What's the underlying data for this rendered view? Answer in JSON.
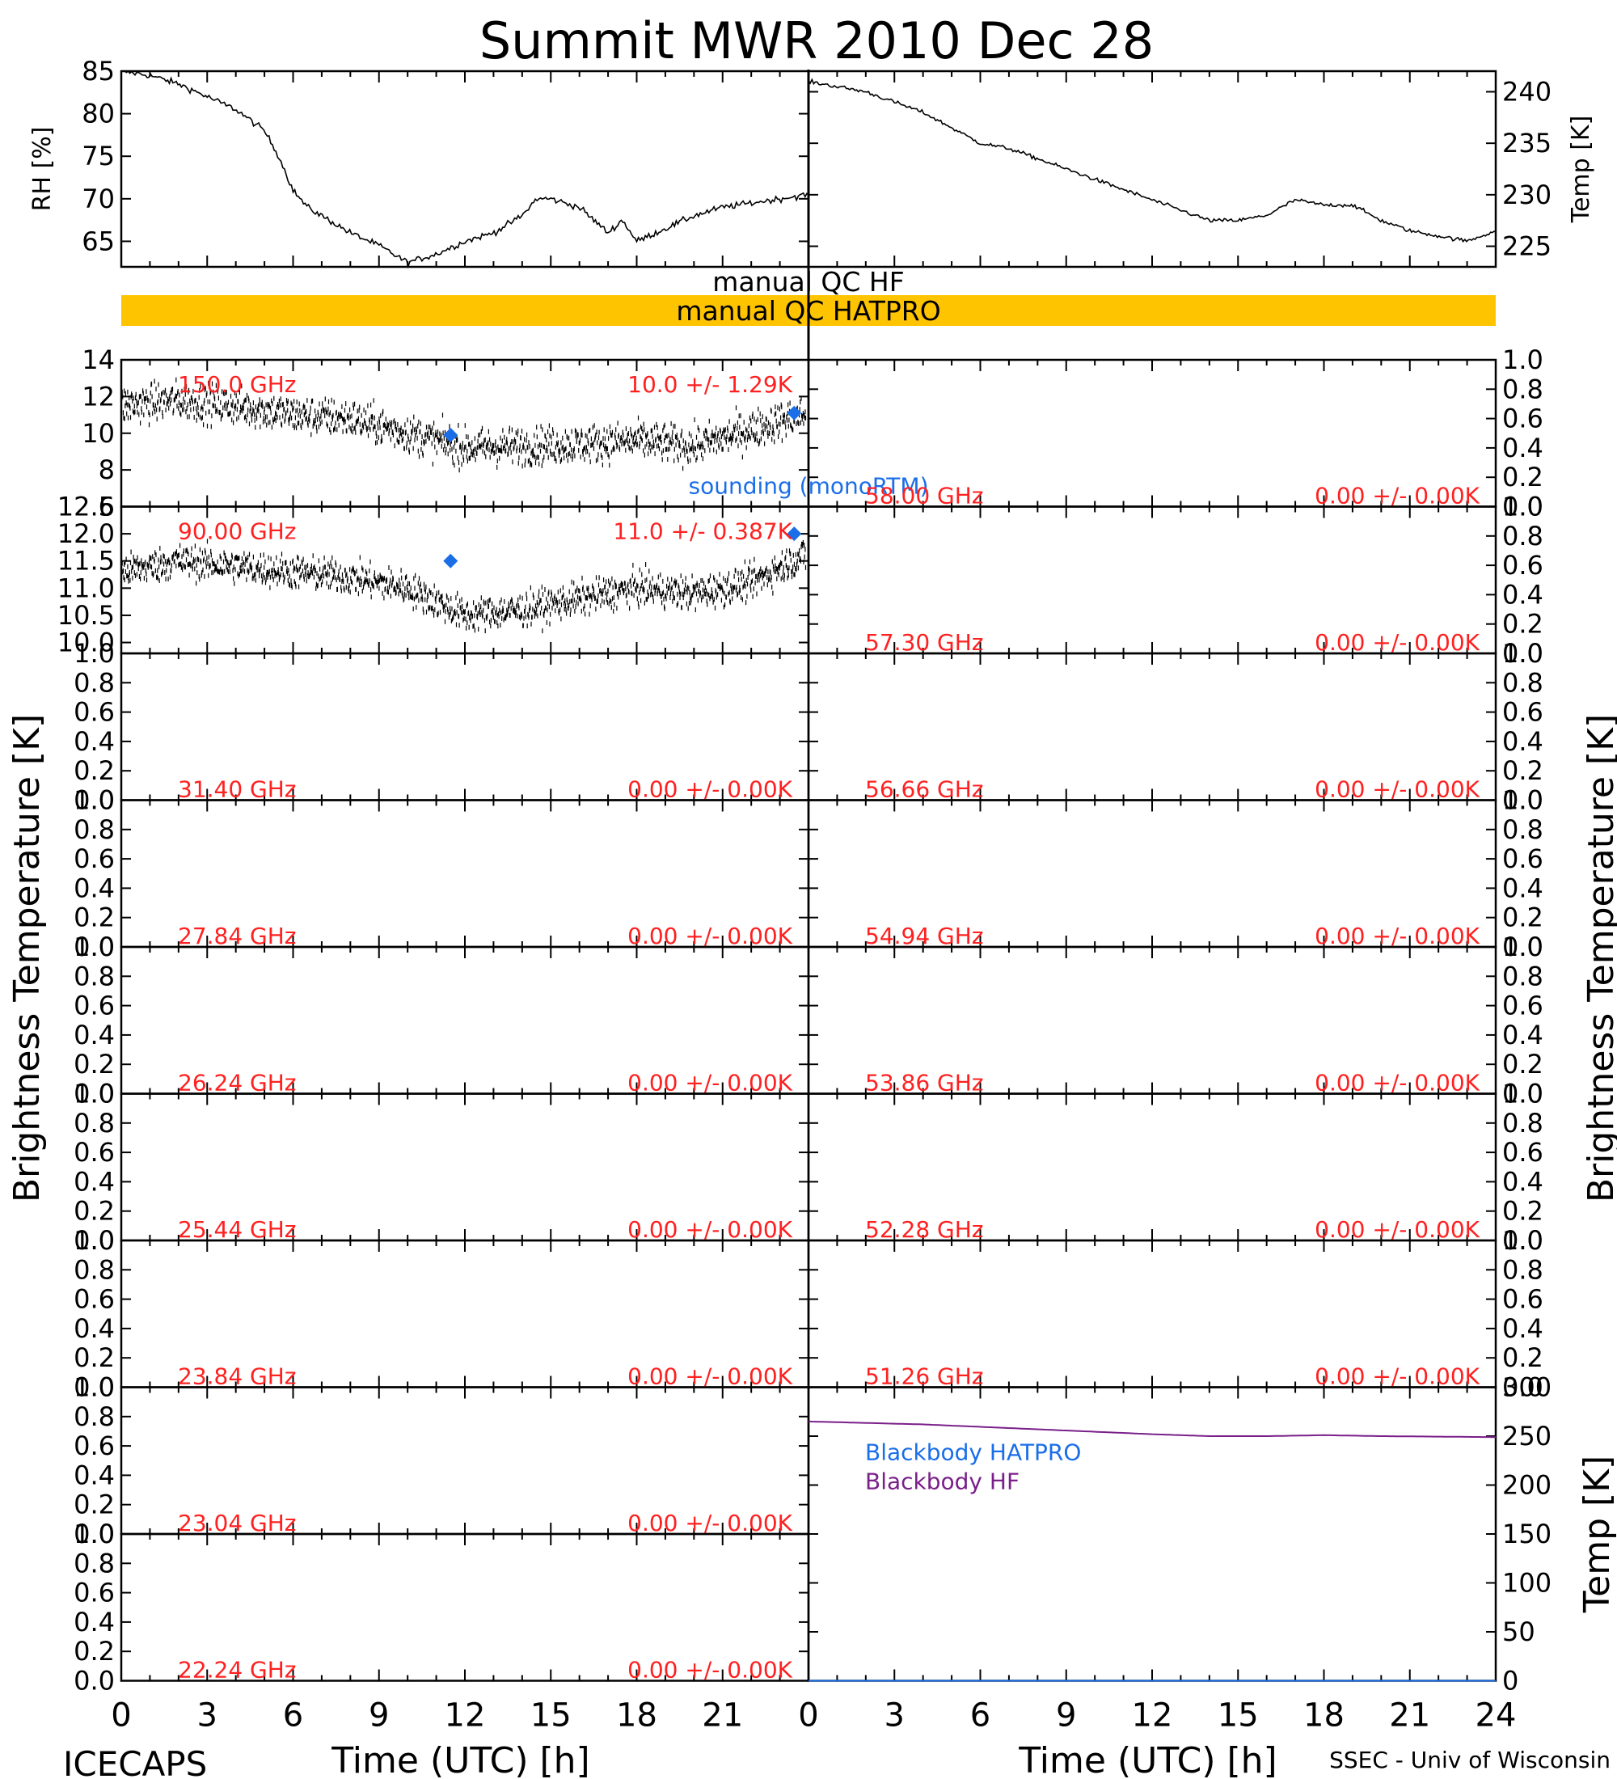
{
  "title": "Summit MWR 2010 Dec 28",
  "footer": {
    "left": "ICECAPS",
    "right": "SSEC - Univ of Wisconsin"
  },
  "x_axis": {
    "label": "Time (UTC) [h]",
    "range": [
      0,
      24
    ],
    "ticks_left": [
      "0",
      "3",
      "6",
      "9",
      "12",
      "15",
      "18",
      "21"
    ],
    "ticks_right": [
      "0",
      "3",
      "6",
      "9",
      "12",
      "15",
      "18",
      "21",
      "24"
    ]
  },
  "side_labels": {
    "left": "Brightness Temperature [K]",
    "right": "Brightness Temperature [K]"
  },
  "qc": {
    "hf": "manual QC HF",
    "hatpro": "manual QC HATPRO",
    "hatpro_color": "#ffc400"
  },
  "colors": {
    "annotation": "#ff2020",
    "sounding": "#1a6ee8",
    "blackbody_hf": "#7a1f8a",
    "data": "#000000"
  },
  "chart_data": [
    {
      "type": "line",
      "panel": "surface-rh",
      "ylabel": "RH [%]",
      "ylim": [
        62,
        85
      ],
      "yticks": [
        "65",
        "70",
        "75",
        "80",
        "85"
      ],
      "x": [
        0,
        1,
        2,
        3,
        4,
        5,
        5.5,
        6,
        6.5,
        7,
        8,
        9,
        9.5,
        10,
        11,
        12,
        13,
        14,
        14.5,
        15,
        16,
        17,
        17.5,
        18,
        19,
        20,
        21,
        22,
        23,
        24
      ],
      "series": [
        {
          "values": [
            85,
            84.5,
            83.5,
            82,
            80.5,
            78,
            75,
            71,
            69,
            68,
            66,
            64.5,
            63.5,
            62.5,
            63.5,
            65,
            66,
            68,
            70,
            70,
            69,
            66,
            67.5,
            65,
            66.5,
            68,
            69,
            69.5,
            70,
            70.5
          ]
        }
      ]
    },
    {
      "type": "line",
      "panel": "surface-temp",
      "ylabel": "Temp [K]",
      "ylim": [
        223,
        242
      ],
      "yticks": [
        "225",
        "230",
        "235",
        "240"
      ],
      "x": [
        0,
        1,
        2,
        3,
        4,
        5,
        6,
        7,
        8,
        9,
        10,
        11,
        12,
        13,
        14,
        15,
        16,
        17,
        18,
        19,
        20,
        21,
        22,
        23,
        24
      ],
      "series": [
        {
          "values": [
            241,
            240.5,
            240,
            239,
            238,
            236.5,
            235,
            234.5,
            233.5,
            232.5,
            231.5,
            230.5,
            229.5,
            228.5,
            227.5,
            227.5,
            228,
            229.5,
            229,
            229,
            227.5,
            226.5,
            226,
            225.5,
            226.5
          ]
        }
      ]
    },
    {
      "type": "scatter",
      "panel": "tb-150",
      "side": "left",
      "row": 0,
      "ylim": [
        6,
        14
      ],
      "yticks": [
        "6",
        "8",
        "10",
        "12",
        "14"
      ],
      "freq_label": "150.0 GHz",
      "stat_label": "10.0 +/-  1.29K",
      "x": [
        0,
        2,
        4,
        6,
        8,
        10,
        12,
        14,
        16,
        18,
        20,
        22,
        23.8
      ],
      "values": [
        11.5,
        11.8,
        11.5,
        11.0,
        10.8,
        10.0,
        9.2,
        9.3,
        9.4,
        9.6,
        9.3,
        10.2,
        11.0
      ],
      "noise": 1.29,
      "sounding": {
        "x": [
          11.5,
          23.5
        ],
        "values": [
          9.9,
          11.1
        ]
      },
      "sounding_label": "sounding (monoRTM)"
    },
    {
      "type": "scatter",
      "panel": "tb-90",
      "side": "left",
      "row": 1,
      "ylim": [
        9.8,
        12.5
      ],
      "yticks": [
        "10.0",
        "10.5",
        "11.0",
        "11.5",
        "12.0",
        "12.5"
      ],
      "freq_label": "90.00 GHz",
      "stat_label": "11.0 +/- 0.387K",
      "x": [
        0,
        2,
        4,
        6,
        8,
        10,
        12,
        14,
        16,
        18,
        20,
        22,
        23.8
      ],
      "values": [
        11.3,
        11.5,
        11.4,
        11.3,
        11.2,
        11.0,
        10.5,
        10.6,
        10.8,
        11.0,
        10.9,
        11.1,
        11.6
      ],
      "noise": 0.387,
      "sounding": {
        "x": [
          11.5,
          23.5
        ],
        "values": [
          11.5,
          12.0
        ]
      }
    },
    {
      "type": "scatter",
      "panel": "tb-31.40",
      "side": "left",
      "row": 2,
      "ylim": [
        0,
        1
      ],
      "yticks": [
        "0.0",
        "0.2",
        "0.4",
        "0.6",
        "0.8",
        "1.0"
      ],
      "freq_label": "31.40 GHz",
      "stat_label": "0.00 +/-  0.00K"
    },
    {
      "type": "scatter",
      "panel": "tb-27.84",
      "side": "left",
      "row": 3,
      "ylim": [
        0,
        1
      ],
      "yticks": [
        "0.0",
        "0.2",
        "0.4",
        "0.6",
        "0.8",
        "1.0"
      ],
      "freq_label": "27.84 GHz",
      "stat_label": "0.00 +/-  0.00K"
    },
    {
      "type": "scatter",
      "panel": "tb-26.24",
      "side": "left",
      "row": 4,
      "ylim": [
        0,
        1
      ],
      "yticks": [
        "0.0",
        "0.2",
        "0.4",
        "0.6",
        "0.8",
        "1.0"
      ],
      "freq_label": "26.24 GHz",
      "stat_label": "0.00 +/-  0.00K"
    },
    {
      "type": "scatter",
      "panel": "tb-25.44",
      "side": "left",
      "row": 5,
      "ylim": [
        0,
        1
      ],
      "yticks": [
        "0.0",
        "0.2",
        "0.4",
        "0.6",
        "0.8",
        "1.0"
      ],
      "freq_label": "25.44 GHz",
      "stat_label": "0.00 +/-  0.00K"
    },
    {
      "type": "scatter",
      "panel": "tb-23.84",
      "side": "left",
      "row": 6,
      "ylim": [
        0,
        1
      ],
      "yticks": [
        "0.0",
        "0.2",
        "0.4",
        "0.6",
        "0.8",
        "1.0"
      ],
      "freq_label": "23.84 GHz",
      "stat_label": "0.00 +/-  0.00K"
    },
    {
      "type": "scatter",
      "panel": "tb-23.04",
      "side": "left",
      "row": 7,
      "ylim": [
        0,
        1
      ],
      "yticks": [
        "0.0",
        "0.2",
        "0.4",
        "0.6",
        "0.8",
        "1.0"
      ],
      "freq_label": "23.04 GHz",
      "stat_label": "0.00 +/-  0.00K"
    },
    {
      "type": "scatter",
      "panel": "tb-22.24",
      "side": "left",
      "row": 8,
      "ylim": [
        0,
        1
      ],
      "yticks": [
        "0.0",
        "0.2",
        "0.4",
        "0.6",
        "0.8",
        "1.0"
      ],
      "freq_label": "22.24 GHz",
      "stat_label": "0.00 +/-  0.00K"
    },
    {
      "type": "scatter",
      "panel": "tb-58.00",
      "side": "right",
      "row": 0,
      "ylim": [
        0,
        1
      ],
      "yticks": [
        "0.0",
        "0.2",
        "0.4",
        "0.6",
        "0.8",
        "1.0"
      ],
      "freq_label": "58.00 GHz",
      "stat_label": "0.00 +/-  0.00K"
    },
    {
      "type": "scatter",
      "panel": "tb-57.30",
      "side": "right",
      "row": 1,
      "ylim": [
        0,
        1
      ],
      "yticks": [
        "0.0",
        "0.2",
        "0.4",
        "0.6",
        "0.8",
        "1.0"
      ],
      "freq_label": "57.30 GHz",
      "stat_label": "0.00 +/-  0.00K"
    },
    {
      "type": "scatter",
      "panel": "tb-56.66",
      "side": "right",
      "row": 2,
      "ylim": [
        0,
        1
      ],
      "yticks": [
        "0.0",
        "0.2",
        "0.4",
        "0.6",
        "0.8",
        "1.0"
      ],
      "freq_label": "56.66 GHz",
      "stat_label": "0.00 +/-  0.00K"
    },
    {
      "type": "scatter",
      "panel": "tb-54.94",
      "side": "right",
      "row": 3,
      "ylim": [
        0,
        1
      ],
      "yticks": [
        "0.0",
        "0.2",
        "0.4",
        "0.6",
        "0.8",
        "1.0"
      ],
      "freq_label": "54.94 GHz",
      "stat_label": "0.00 +/-  0.00K"
    },
    {
      "type": "scatter",
      "panel": "tb-53.86",
      "side": "right",
      "row": 4,
      "ylim": [
        0,
        1
      ],
      "yticks": [
        "0.0",
        "0.2",
        "0.4",
        "0.6",
        "0.8",
        "1.0"
      ],
      "freq_label": "53.86 GHz",
      "stat_label": "0.00 +/-  0.00K"
    },
    {
      "type": "scatter",
      "panel": "tb-52.28",
      "side": "right",
      "row": 5,
      "ylim": [
        0,
        1
      ],
      "yticks": [
        "0.0",
        "0.2",
        "0.4",
        "0.6",
        "0.8",
        "1.0"
      ],
      "freq_label": "52.28 GHz",
      "stat_label": "0.00 +/-  0.00K"
    },
    {
      "type": "scatter",
      "panel": "tb-51.26",
      "side": "right",
      "row": 6,
      "ylim": [
        0,
        1
      ],
      "yticks": [
        "0.0",
        "0.2",
        "0.4",
        "0.6",
        "0.8",
        "1.0"
      ],
      "freq_label": "51.26 GHz",
      "stat_label": "0.00 +/-  0.00K"
    },
    {
      "type": "line",
      "panel": "blackbody",
      "ylabel": "Temp [K]",
      "ylim": [
        0,
        300
      ],
      "yticks": [
        "0",
        "50",
        "100",
        "150",
        "200",
        "250",
        "300"
      ],
      "x": [
        0,
        4,
        8,
        12,
        14,
        16,
        18,
        20,
        24
      ],
      "series": [
        {
          "name": "Blackbody HATPRO",
          "values": [
            0,
            0,
            0,
            0,
            0,
            0,
            0,
            0,
            0
          ]
        },
        {
          "name": "Blackbody HF",
          "values": [
            265,
            262,
            257,
            252,
            250,
            250,
            251,
            250,
            249
          ]
        }
      ]
    }
  ]
}
